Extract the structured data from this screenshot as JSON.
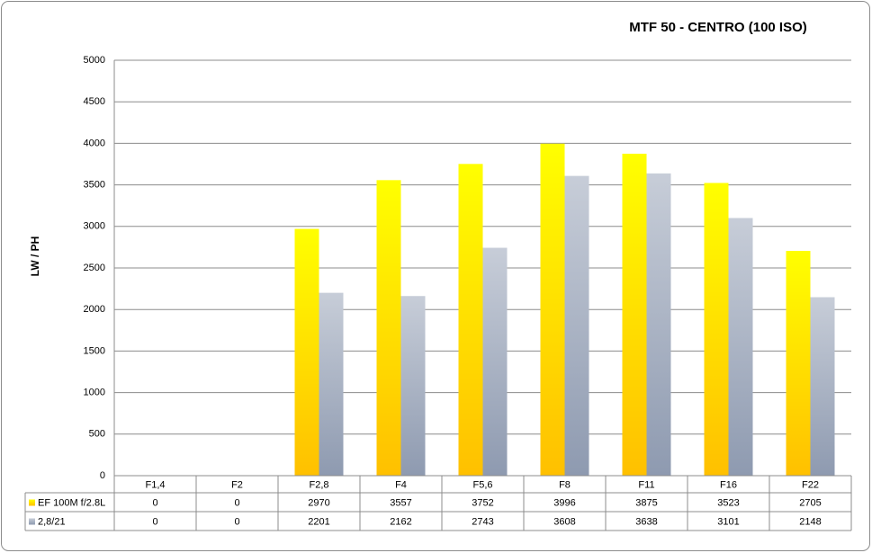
{
  "chart_data": {
    "type": "bar",
    "title": "MTF 50 - CENTRO (100 ISO)",
    "y_label": "LW / PH",
    "categories": [
      "F1,4",
      "F2",
      "F2,8",
      "F4",
      "F5,6",
      "F8",
      "F11",
      "F16",
      "F22"
    ],
    "series": [
      {
        "name": "EF 100M f/2.8L",
        "color": "#ffc000",
        "values": [
          0,
          0,
          2970,
          3557,
          3752,
          3996,
          3875,
          3523,
          2705
        ]
      },
      {
        "name": "2,8/21",
        "color": "#8e9ab0",
        "values": [
          0,
          0,
          2201,
          2162,
          2743,
          3608,
          3638,
          3101,
          2148
        ]
      }
    ],
    "ylim": [
      0,
      5000
    ],
    "yticks": [
      0,
      500,
      1000,
      1500,
      2000,
      2500,
      3000,
      3500,
      4000,
      4500,
      5000
    ],
    "grid": true,
    "legend": "data-table"
  }
}
